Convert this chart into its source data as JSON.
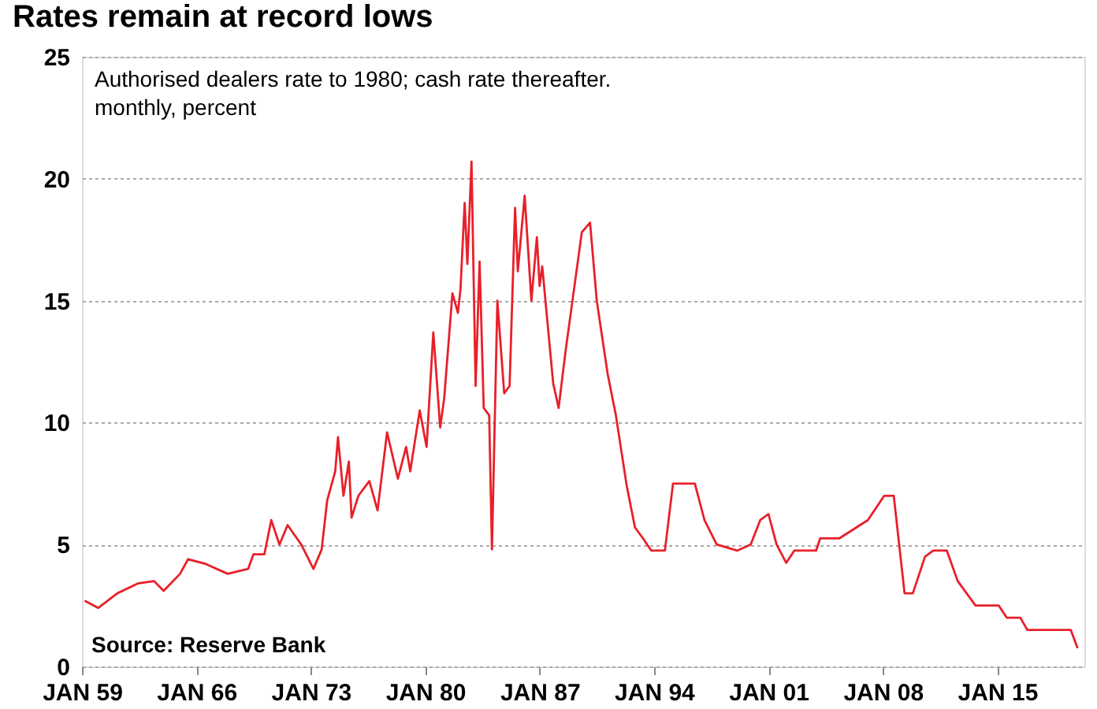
{
  "chart_data": {
    "type": "line",
    "title": "Rates remain at record lows",
    "subtitle": [
      "Authorised dealers rate to 1980; cash rate thereafter.",
      "monthly, percent"
    ],
    "annotations": [
      "Source: Reserve Bank"
    ],
    "x": [
      "1959-03",
      "1960-01",
      "1961-03",
      "1962-06",
      "1963-06",
      "1964-01",
      "1965-01",
      "1965-07",
      "1966-08",
      "1967-12",
      "1969-03",
      "1969-07",
      "1970-03",
      "1970-08",
      "1971-02",
      "1971-08",
      "1972-06",
      "1973-03",
      "1973-09",
      "1974-01",
      "1974-07",
      "1974-09",
      "1975-01",
      "1975-05",
      "1975-07",
      "1975-12",
      "1976-08",
      "1977-02",
      "1977-09",
      "1978-05",
      "1978-11",
      "1979-02",
      "1979-09",
      "1980-02",
      "1980-07",
      "1980-12",
      "1981-03",
      "1981-09",
      "1982-01",
      "1982-03",
      "1982-06",
      "1982-08",
      "1982-11",
      "1983-02",
      "1983-05",
      "1983-08",
      "1983-12",
      "1984-02",
      "1984-06",
      "1984-11",
      "1985-03",
      "1985-07",
      "1985-09",
      "1986-02",
      "1986-07",
      "1986-11",
      "1987-01",
      "1987-03",
      "1987-11",
      "1988-03",
      "1988-08",
      "1989-08",
      "1990-02",
      "1990-07",
      "1991-03",
      "1991-09",
      "1992-05",
      "1992-11",
      "1993-05",
      "1993-11",
      "1994-09",
      "1995-03",
      "1996-07",
      "1997-02",
      "1997-11",
      "1999-02",
      "1999-12",
      "2000-07",
      "2001-01",
      "2001-07",
      "2002-02",
      "2002-08",
      "2003-12",
      "2004-03",
      "2005-05",
      "2006-07",
      "2007-02",
      "2008-02",
      "2008-09",
      "2009-05",
      "2009-11",
      "2010-08",
      "2011-02",
      "2011-12",
      "2012-08",
      "2013-09",
      "2015-02",
      "2015-08",
      "2016-06",
      "2016-11",
      "2019-07",
      "2019-12"
    ],
    "series": [
      {
        "color": "#e8202a",
        "values": [
          2.7,
          2.4,
          3.0,
          3.4,
          3.5,
          3.1,
          3.8,
          4.4,
          4.2,
          3.8,
          4.0,
          4.6,
          4.6,
          6.0,
          5.0,
          5.8,
          5.0,
          4.0,
          4.8,
          6.8,
          8.0,
          9.4,
          7.0,
          8.4,
          6.1,
          7.0,
          7.6,
          6.4,
          9.6,
          7.7,
          9.0,
          8.0,
          10.5,
          9.0,
          13.7,
          9.8,
          11.0,
          15.3,
          14.5,
          15.5,
          19.0,
          16.5,
          20.7,
          11.5,
          16.6,
          10.6,
          10.3,
          4.8,
          15.0,
          11.2,
          11.5,
          18.8,
          16.2,
          19.3,
          15.0,
          17.6,
          15.6,
          16.4,
          11.6,
          10.6,
          12.9,
          17.8,
          18.2,
          15.0,
          12.0,
          10.3,
          7.4,
          5.7,
          5.25,
          4.75,
          4.75,
          7.5,
          7.5,
          6.0,
          5.0,
          4.75,
          5.0,
          6.0,
          6.25,
          5.0,
          4.25,
          4.75,
          4.75,
          5.25,
          5.25,
          5.75,
          6.0,
          7.0,
          7.0,
          3.0,
          3.0,
          4.5,
          4.75,
          4.75,
          3.5,
          2.5,
          2.5,
          2.0,
          2.0,
          1.5,
          1.5,
          0.75
        ]
      }
    ],
    "xlim": [
      "1959-01",
      "2020-05"
    ],
    "xticks": [
      {
        "value": "1959-01",
        "label": "JAN 59"
      },
      {
        "value": "1966-01",
        "label": "JAN 66"
      },
      {
        "value": "1973-01",
        "label": "JAN 73"
      },
      {
        "value": "1980-01",
        "label": "JAN 80"
      },
      {
        "value": "1987-01",
        "label": "JAN 87"
      },
      {
        "value": "1994-01",
        "label": "JAN 94"
      },
      {
        "value": "2001-01",
        "label": "JAN 01"
      },
      {
        "value": "2008-01",
        "label": "JAN 08"
      },
      {
        "value": "2015-01",
        "label": "JAN 15"
      }
    ],
    "ylim": [
      0,
      25
    ],
    "yticks": [
      0,
      5,
      10,
      15,
      20,
      25
    ],
    "grid": "y",
    "marker": "none",
    "line_style": "solid"
  }
}
